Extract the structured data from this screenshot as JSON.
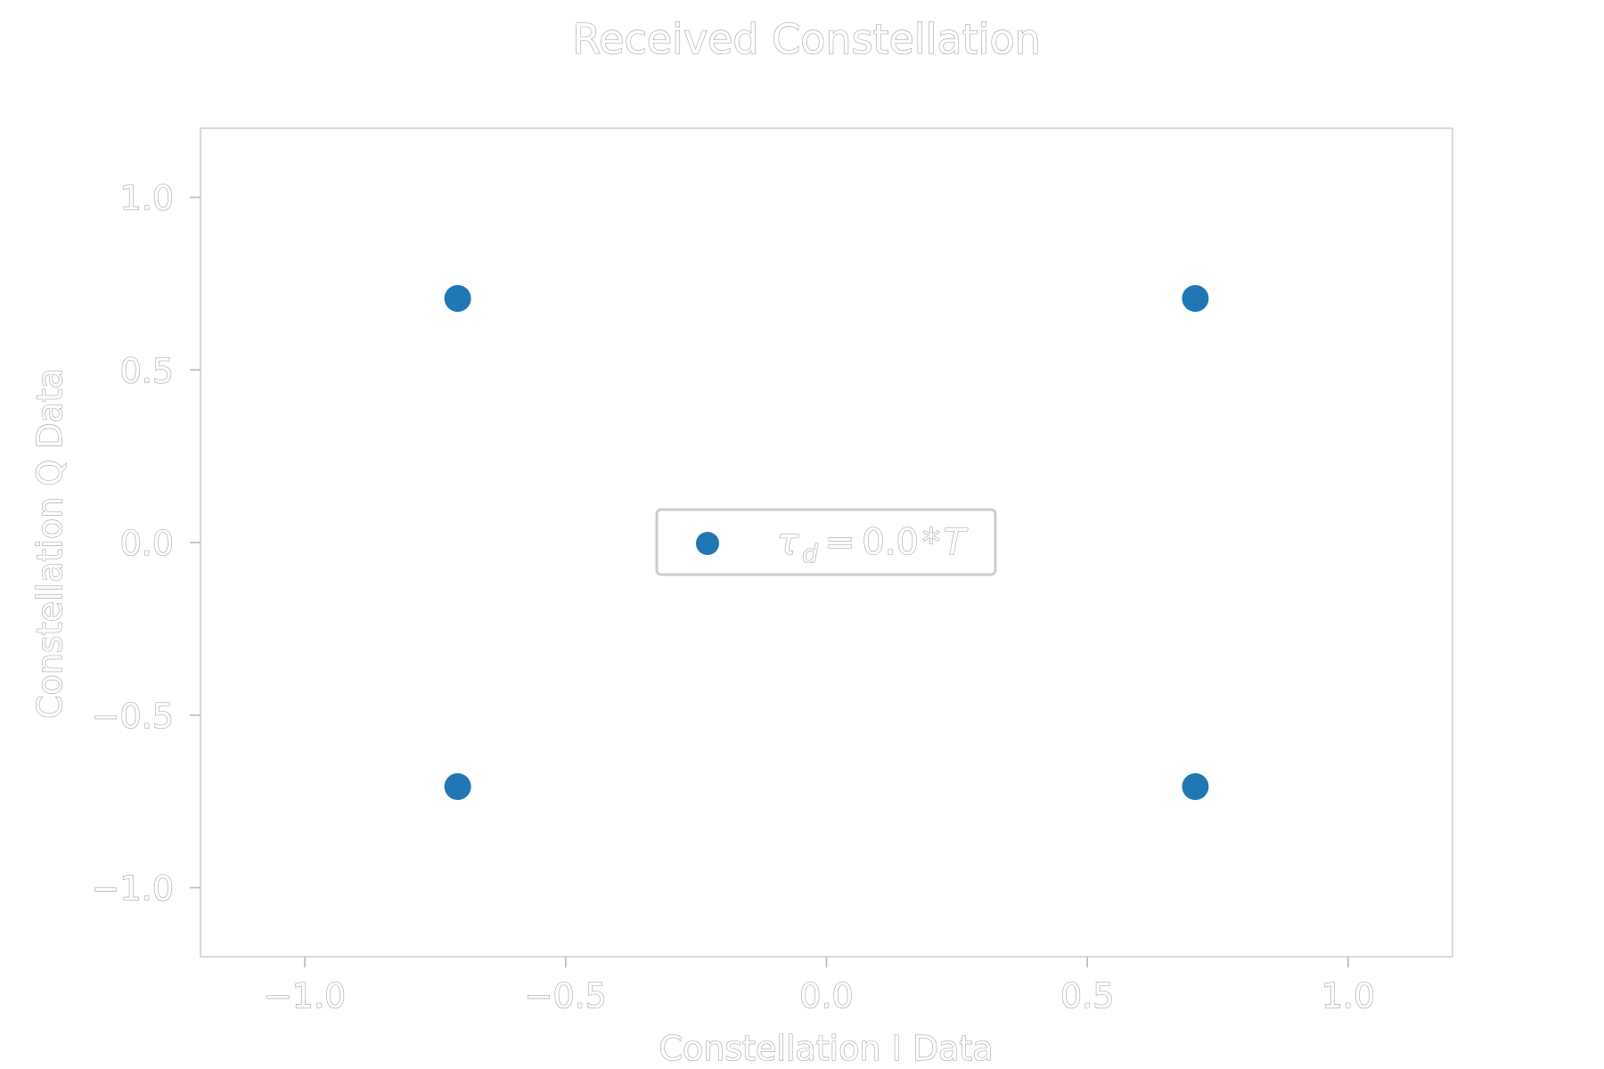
{
  "chart_data": {
    "type": "scatter",
    "title": "Received Constellation",
    "xlabel": "Constellation I Data",
    "ylabel": "Constellation Q Data",
    "xlim": [
      -1.2,
      1.2
    ],
    "ylim": [
      -1.2,
      1.2
    ],
    "xticks": [
      -1.0,
      -0.5,
      0.0,
      0.5,
      1.0
    ],
    "yticks": [
      -1.0,
      -0.5,
      0.0,
      0.5,
      1.0
    ],
    "xtick_labels": [
      "−1.0",
      "−0.5",
      "0.0",
      "0.5",
      "1.0"
    ],
    "ytick_labels": [
      "−1.0",
      "−0.5",
      "0.0",
      "0.5",
      "1.0"
    ],
    "grid": false,
    "legend_position": "center",
    "series": [
      {
        "name": "τd = 0.0*T",
        "color": "#1f77b4",
        "points": [
          {
            "x": -0.707,
            "y": 0.707
          },
          {
            "x": 0.707,
            "y": 0.707
          },
          {
            "x": -0.707,
            "y": -0.707
          },
          {
            "x": 0.707,
            "y": -0.707
          }
        ]
      }
    ],
    "legend": {
      "symbol": "τ",
      "subscript": "d",
      "equals": "=",
      "value": "0.0",
      "times": "*",
      "period": "T"
    }
  }
}
